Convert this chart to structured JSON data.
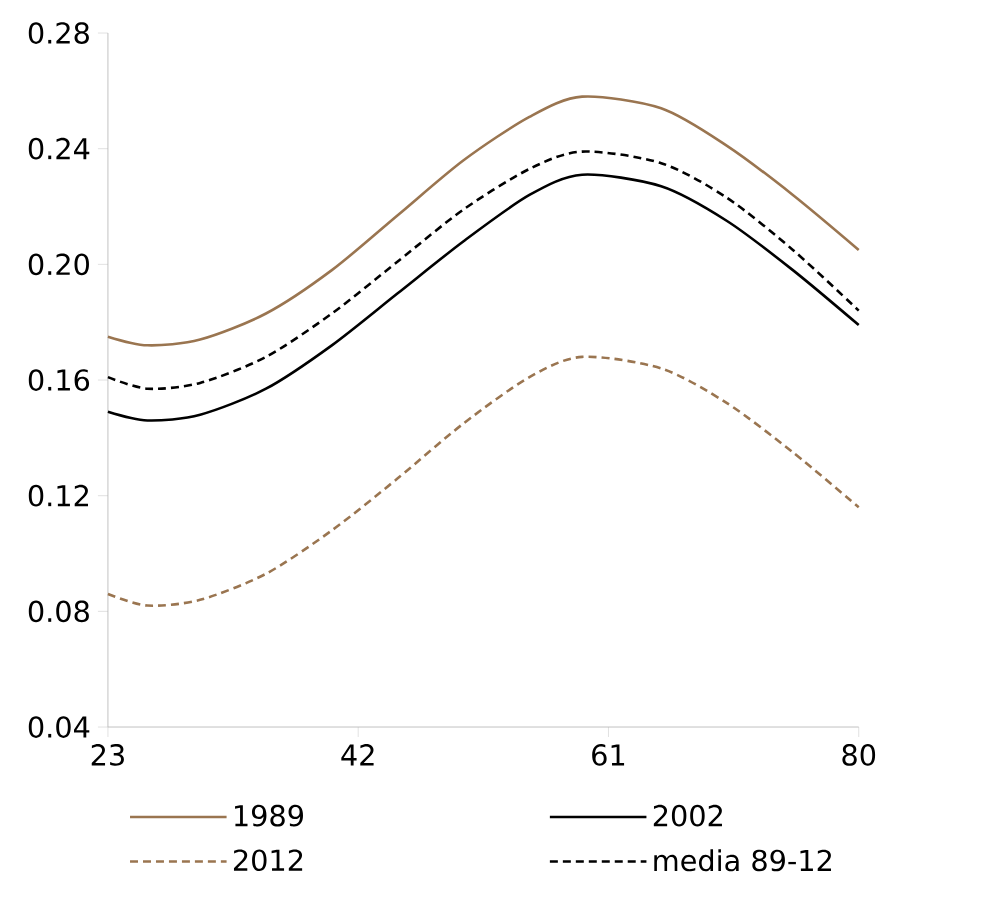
{
  "chart_data": {
    "type": "line",
    "xlim": [
      23,
      80
    ],
    "xticks": [
      23,
      42,
      61,
      80
    ],
    "ylim": [
      0.04,
      0.28
    ],
    "yticks": [
      {
        "value": 0.04,
        "label": "0.04"
      },
      {
        "value": 0.08,
        "label": "0.08"
      },
      {
        "value": 0.12,
        "label": "0.12"
      },
      {
        "value": 0.16,
        "label": "0.16"
      },
      {
        "value": 0.2,
        "label": "0.20"
      },
      {
        "value": 0.24,
        "label": "0.24"
      },
      {
        "value": 0.28,
        "label": "0.28"
      }
    ],
    "x": [
      23,
      26,
      30,
      35,
      40,
      45,
      50,
      55,
      59,
      65,
      70,
      75,
      80
    ],
    "legend": "bottom",
    "grid": false,
    "marker": "none",
    "series": [
      {
        "name": "1989",
        "color": "#9a7550",
        "line_style": "solid",
        "values": [
          0.175,
          0.172,
          0.174,
          0.183,
          0.198,
          0.217,
          0.236,
          0.251,
          0.258,
          0.254,
          0.241,
          0.224,
          0.205
        ]
      },
      {
        "name": "2002",
        "color": "#000000",
        "line_style": "solid",
        "values": [
          0.149,
          0.146,
          0.148,
          0.157,
          0.172,
          0.19,
          0.208,
          0.224,
          0.231,
          0.227,
          0.215,
          0.198,
          0.179
        ]
      },
      {
        "name": "2012",
        "color": "#9a7550",
        "line_style": "dashed",
        "values": [
          0.086,
          0.082,
          0.084,
          0.093,
          0.108,
          0.126,
          0.145,
          0.161,
          0.168,
          0.164,
          0.152,
          0.135,
          0.116
        ]
      },
      {
        "name": "media 89-12",
        "color": "#000000",
        "line_style": "dashed",
        "values": [
          0.161,
          0.157,
          0.159,
          0.168,
          0.183,
          0.201,
          0.219,
          0.233,
          0.239,
          0.235,
          0.223,
          0.205,
          0.184
        ]
      }
    ]
  }
}
